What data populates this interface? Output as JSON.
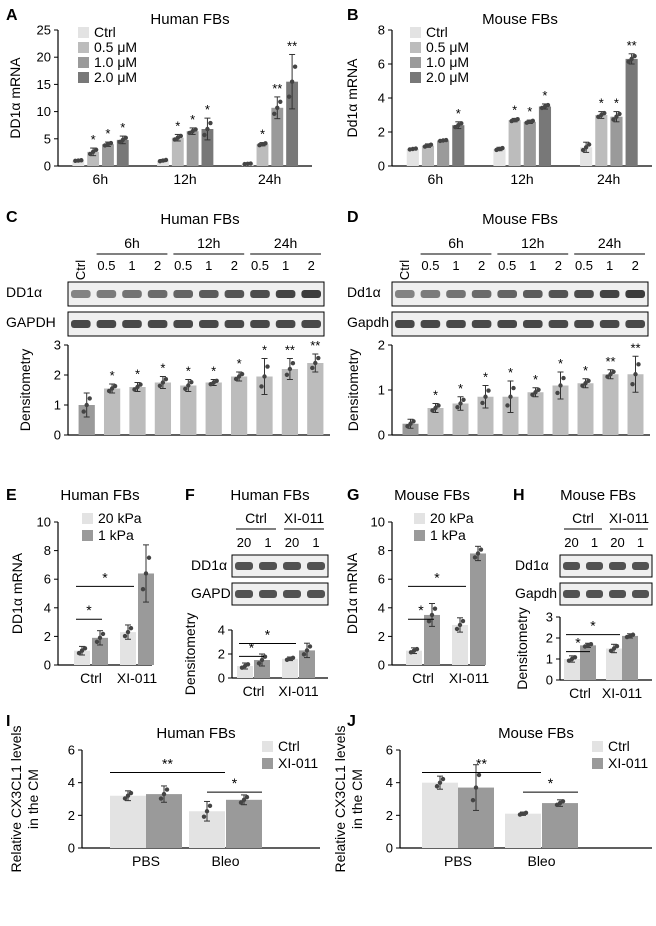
{
  "colors": {
    "c0": "#e3e3e3",
    "c1": "#bcbcbc",
    "c2": "#9a9a9a",
    "c3": "#787878",
    "blot_bg": "#efefef",
    "band": "#2a2a2a"
  },
  "chart_data": [
    {
      "id": "A",
      "letter": "A",
      "type": "bar",
      "title": "Human FBs",
      "ylabel": "DD1α mRNA",
      "ylim": [
        0,
        25
      ],
      "yticks": [
        0,
        5,
        10,
        15,
        20,
        25
      ],
      "categories": [
        "6h",
        "12h",
        "24h"
      ],
      "legend": [
        "Ctrl",
        "0.5 μM",
        "1.0 μM",
        "2.0 μM"
      ],
      "series": [
        {
          "name": "Ctrl",
          "values": [
            1.0,
            1.0,
            0.4
          ],
          "err": [
            0.1,
            0.2,
            0.1
          ],
          "stars": [
            "",
            "",
            ""
          ]
        },
        {
          "name": "0.5 μM",
          "values": [
            2.6,
            5.2,
            4.0
          ],
          "err": [
            0.7,
            0.6,
            0.3
          ],
          "stars": [
            "*",
            "*",
            "*"
          ]
        },
        {
          "name": "1.0 μM",
          "values": [
            4.0,
            6.4,
            10.7
          ],
          "err": [
            0.4,
            0.6,
            2.0
          ],
          "stars": [
            "*",
            "*",
            "**"
          ]
        },
        {
          "name": "2.0 μM",
          "values": [
            4.8,
            6.8,
            15.5
          ],
          "err": [
            0.7,
            2.0,
            5.0
          ],
          "stars": [
            "*",
            "*",
            "**"
          ]
        }
      ]
    },
    {
      "id": "B",
      "letter": "B",
      "type": "bar",
      "title": "Mouse  FBs",
      "ylabel": "Dd1α mRNA",
      "ylim": [
        0,
        8
      ],
      "yticks": [
        0,
        2,
        4,
        6,
        8
      ],
      "categories": [
        "6h",
        "12h",
        "24h"
      ],
      "legend": [
        "Ctrl",
        "0.5 μM",
        "1.0 μM",
        "2.0 μM"
      ],
      "series": [
        {
          "name": "Ctrl",
          "values": [
            1.0,
            1.0,
            1.1
          ],
          "err": [
            0.05,
            0.1,
            0.3
          ],
          "stars": [
            "",
            "",
            ""
          ]
        },
        {
          "name": "0.5 μM",
          "values": [
            1.2,
            2.7,
            3.0
          ],
          "err": [
            0.1,
            0.1,
            0.2
          ],
          "stars": [
            "",
            "*",
            "*"
          ]
        },
        {
          "name": "1.0 μM",
          "values": [
            1.5,
            2.6,
            2.9
          ],
          "err": [
            0.05,
            0.1,
            0.3
          ],
          "stars": [
            "",
            "*",
            "*"
          ]
        },
        {
          "name": "2.0 μM",
          "values": [
            2.4,
            3.5,
            6.3
          ],
          "err": [
            0.2,
            0.15,
            0.3
          ],
          "stars": [
            "*",
            "*",
            "**"
          ]
        }
      ]
    },
    {
      "id": "C",
      "letter": "C",
      "type": "bar",
      "title": "Human FBs",
      "ylabel": "Densitometry",
      "ylim": [
        0,
        3
      ],
      "yticks": [
        0,
        1,
        2,
        3
      ],
      "categories": [
        "Ctrl",
        "0.5",
        "1",
        "2",
        "0.5",
        "1",
        "2",
        "0.5",
        "1",
        "2"
      ],
      "values": [
        1.0,
        1.55,
        1.6,
        1.75,
        1.65,
        1.75,
        1.95,
        1.95,
        2.2,
        2.4
      ],
      "err": [
        0.4,
        0.15,
        0.15,
        0.2,
        0.2,
        0.1,
        0.15,
        0.6,
        0.35,
        0.3
      ],
      "stars": [
        "",
        "*",
        "*",
        "*",
        "*",
        "*",
        "*",
        "*",
        "**",
        "**"
      ]
    },
    {
      "id": "D",
      "letter": "D",
      "type": "bar",
      "title": "Mouse  FBs",
      "ylabel": "Densitometry",
      "ylim": [
        0,
        2
      ],
      "yticks": [
        0,
        1,
        2
      ],
      "categories": [
        "Ctrl",
        "0.5",
        "1",
        "2",
        "0.5",
        "1",
        "2",
        "0.5",
        "1",
        "2"
      ],
      "values": [
        0.25,
        0.6,
        0.7,
        0.85,
        0.85,
        0.95,
        1.1,
        1.15,
        1.35,
        1.35
      ],
      "err": [
        0.1,
        0.1,
        0.15,
        0.25,
        0.35,
        0.1,
        0.3,
        0.1,
        0.1,
        0.4
      ],
      "stars": [
        "",
        "*",
        "*",
        "*",
        "*",
        "*",
        "*",
        "*",
        "**",
        "**"
      ]
    },
    {
      "id": "E",
      "letter": "E",
      "type": "bar",
      "title": "Human FBs",
      "ylabel": "DD1α mRNA",
      "ylim": [
        0,
        10
      ],
      "yticks": [
        0,
        2,
        4,
        6,
        8,
        10
      ],
      "categories": [
        "Ctrl",
        "XI-011"
      ],
      "legend": [
        "20 kPa",
        "1 kPa"
      ],
      "series": [
        {
          "name": "20 kPa",
          "values": [
            1.0,
            2.3
          ],
          "err": [
            0.3,
            0.5
          ]
        },
        {
          "name": "1 kPa",
          "values": [
            1.9,
            6.4
          ],
          "err": [
            0.5,
            2.0
          ]
        }
      ],
      "sig": [
        {
          "label": "*"
        },
        {
          "label": "*"
        }
      ]
    },
    {
      "id": "F",
      "letter": "F",
      "type": "bar",
      "title": "Human FBs",
      "ylabel": "Densitometry",
      "ylim": [
        0,
        4
      ],
      "yticks": [
        0,
        2,
        4
      ],
      "categories": [
        "Ctrl",
        "XI-011"
      ],
      "legend": [],
      "series": [
        {
          "name": "20",
          "values": [
            1.0,
            1.6
          ],
          "err": [
            0.25,
            0.15
          ]
        },
        {
          "name": "1",
          "values": [
            1.5,
            2.3
          ],
          "err": [
            0.5,
            0.6
          ]
        }
      ],
      "sig": [
        {
          "label": "*"
        },
        {
          "label": "*"
        }
      ]
    },
    {
      "id": "G",
      "letter": "G",
      "type": "bar",
      "title": "Mouse  FBs",
      "ylabel": "DD1α mRNA",
      "ylim": [
        0,
        10
      ],
      "yticks": [
        0,
        2,
        4,
        6,
        8,
        10
      ],
      "categories": [
        "Ctrl",
        "XI-011"
      ],
      "legend": [
        "20 kPa",
        "1 kPa"
      ],
      "series": [
        {
          "name": "20 kPa",
          "values": [
            1.0,
            2.8
          ],
          "err": [
            0.2,
            0.5
          ]
        },
        {
          "name": "1 kPa",
          "values": [
            3.5,
            7.8
          ],
          "err": [
            0.8,
            0.5
          ]
        }
      ],
      "sig": [
        {
          "label": "*"
        },
        {
          "label": "*"
        }
      ]
    },
    {
      "id": "H",
      "letter": "H",
      "type": "bar",
      "title": "Mouse  FBs",
      "ylabel": "Densitometry",
      "ylim": [
        0,
        3
      ],
      "yticks": [
        0,
        1,
        2,
        3
      ],
      "categories": [
        "Ctrl",
        "XI-011"
      ],
      "legend": [],
      "series": [
        {
          "name": "20",
          "values": [
            1.0,
            1.5
          ],
          "err": [
            0.15,
            0.2
          ]
        },
        {
          "name": "1",
          "values": [
            1.65,
            2.1
          ],
          "err": [
            0.1,
            0.1
          ]
        }
      ],
      "sig": [
        {
          "label": "*"
        },
        {
          "label": "*"
        }
      ]
    },
    {
      "id": "I",
      "letter": "I",
      "type": "bar",
      "title": "Human FBs",
      "ylabel": [
        "Relative CX3CL1 levels",
        "in the CM"
      ],
      "ylim": [
        0,
        6
      ],
      "yticks": [
        0,
        2,
        4,
        6
      ],
      "categories": [
        "PBS",
        "Bleo"
      ],
      "legend": [
        "Ctrl",
        "XI-011"
      ],
      "series": [
        {
          "name": "Ctrl",
          "values": [
            3.2,
            2.25
          ],
          "err": [
            0.3,
            0.6
          ]
        },
        {
          "name": "XI-011",
          "values": [
            3.3,
            2.95
          ],
          "err": [
            0.5,
            0.3
          ]
        }
      ],
      "sig": [
        {
          "label": "**"
        },
        {
          "label": "*"
        }
      ]
    },
    {
      "id": "J",
      "letter": "J",
      "type": "bar",
      "title": "Mouse  FBs",
      "ylabel": [
        "Relative CX3CL1 levels",
        "in the CM"
      ],
      "ylim": [
        0,
        6
      ],
      "yticks": [
        0,
        2,
        4,
        6
      ],
      "categories": [
        "PBS",
        "Bleo"
      ],
      "legend": [
        "Ctrl",
        "XI-011"
      ],
      "series": [
        {
          "name": "Ctrl",
          "values": [
            4.0,
            2.1
          ],
          "err": [
            0.4,
            0.1
          ]
        },
        {
          "name": "XI-011",
          "values": [
            3.7,
            2.75
          ],
          "err": [
            1.4,
            0.2
          ]
        }
      ],
      "sig": [
        {
          "label": "**"
        },
        {
          "label": "*"
        }
      ]
    }
  ],
  "blots": {
    "C": {
      "lane_labels": [
        "Ctrl",
        "0.5",
        "1",
        "2",
        "0.5",
        "1",
        "2",
        "0.5",
        "1",
        "2"
      ],
      "groups": [
        "6h",
        "12h",
        "24h"
      ],
      "rows": [
        "DD1α",
        "GAPDH"
      ]
    },
    "D": {
      "lane_labels": [
        "Ctrl",
        "0.5",
        "1",
        "2",
        "0.5",
        "1",
        "2",
        "0.5",
        "1",
        "2"
      ],
      "groups": [
        "6h",
        "12h",
        "24h"
      ],
      "rows": [
        "Dd1α",
        "Gapdh"
      ]
    },
    "F": {
      "groups": [
        "Ctrl",
        "XI-011"
      ],
      "lane_labels": [
        "20",
        "1",
        "20",
        "1"
      ],
      "rows": [
        "DD1α",
        "GAPDH"
      ]
    },
    "H": {
      "groups": [
        "Ctrl",
        "XI-011"
      ],
      "lane_labels": [
        "20",
        "1",
        "20",
        "1"
      ],
      "rows": [
        "Dd1α",
        "Gapdh"
      ]
    }
  }
}
